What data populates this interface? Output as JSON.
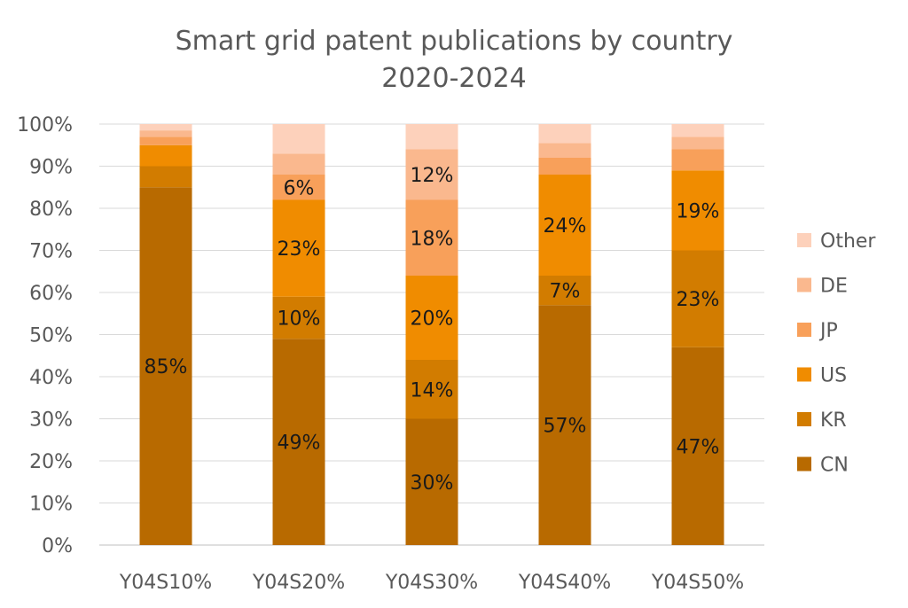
{
  "chart_data": {
    "type": "bar",
    "stacked": true,
    "title": "Smart grid patent publications by country",
    "subtitle": "2020-2024",
    "xlabel": "",
    "ylabel": "",
    "ylim": [
      0,
      100
    ],
    "y_ticks": [
      "0%",
      "10%",
      "20%",
      "30%",
      "40%",
      "50%",
      "60%",
      "70%",
      "80%",
      "90%",
      "100%"
    ],
    "categories": [
      "Y04S10%",
      "Y04S20%",
      "Y04S30%",
      "Y04S40%",
      "Y04S50%"
    ],
    "grid": true,
    "legend_position": "right",
    "series": [
      {
        "name": "CN",
        "color": "#b86a00",
        "values": [
          85,
          49,
          30,
          57,
          47
        ],
        "labels": [
          "85%",
          "49%",
          "30%",
          "57%",
          "47%"
        ]
      },
      {
        "name": "KR",
        "color": "#d27c00",
        "values": [
          5,
          10,
          14,
          7,
          23
        ],
        "labels": [
          "",
          "10%",
          "14%",
          "7%",
          "23%"
        ]
      },
      {
        "name": "US",
        "color": "#f08c00",
        "values": [
          5,
          23,
          20,
          24,
          19
        ],
        "labels": [
          "",
          "23%",
          "20%",
          "24%",
          "19%"
        ]
      },
      {
        "name": "JP",
        "color": "#f8a05a",
        "values": [
          2,
          6,
          18,
          4,
          5
        ],
        "labels": [
          "",
          "6%",
          "18%",
          "",
          ""
        ]
      },
      {
        "name": "DE",
        "color": "#fab88e",
        "values": [
          1.5,
          5,
          12,
          3.5,
          3
        ],
        "labels": [
          "",
          "",
          "12%",
          "",
          ""
        ]
      },
      {
        "name": "Other",
        "color": "#fdd1bb",
        "values": [
          1.5,
          7,
          6,
          4.5,
          3
        ],
        "labels": [
          "",
          "",
          "",
          "",
          ""
        ]
      }
    ]
  }
}
